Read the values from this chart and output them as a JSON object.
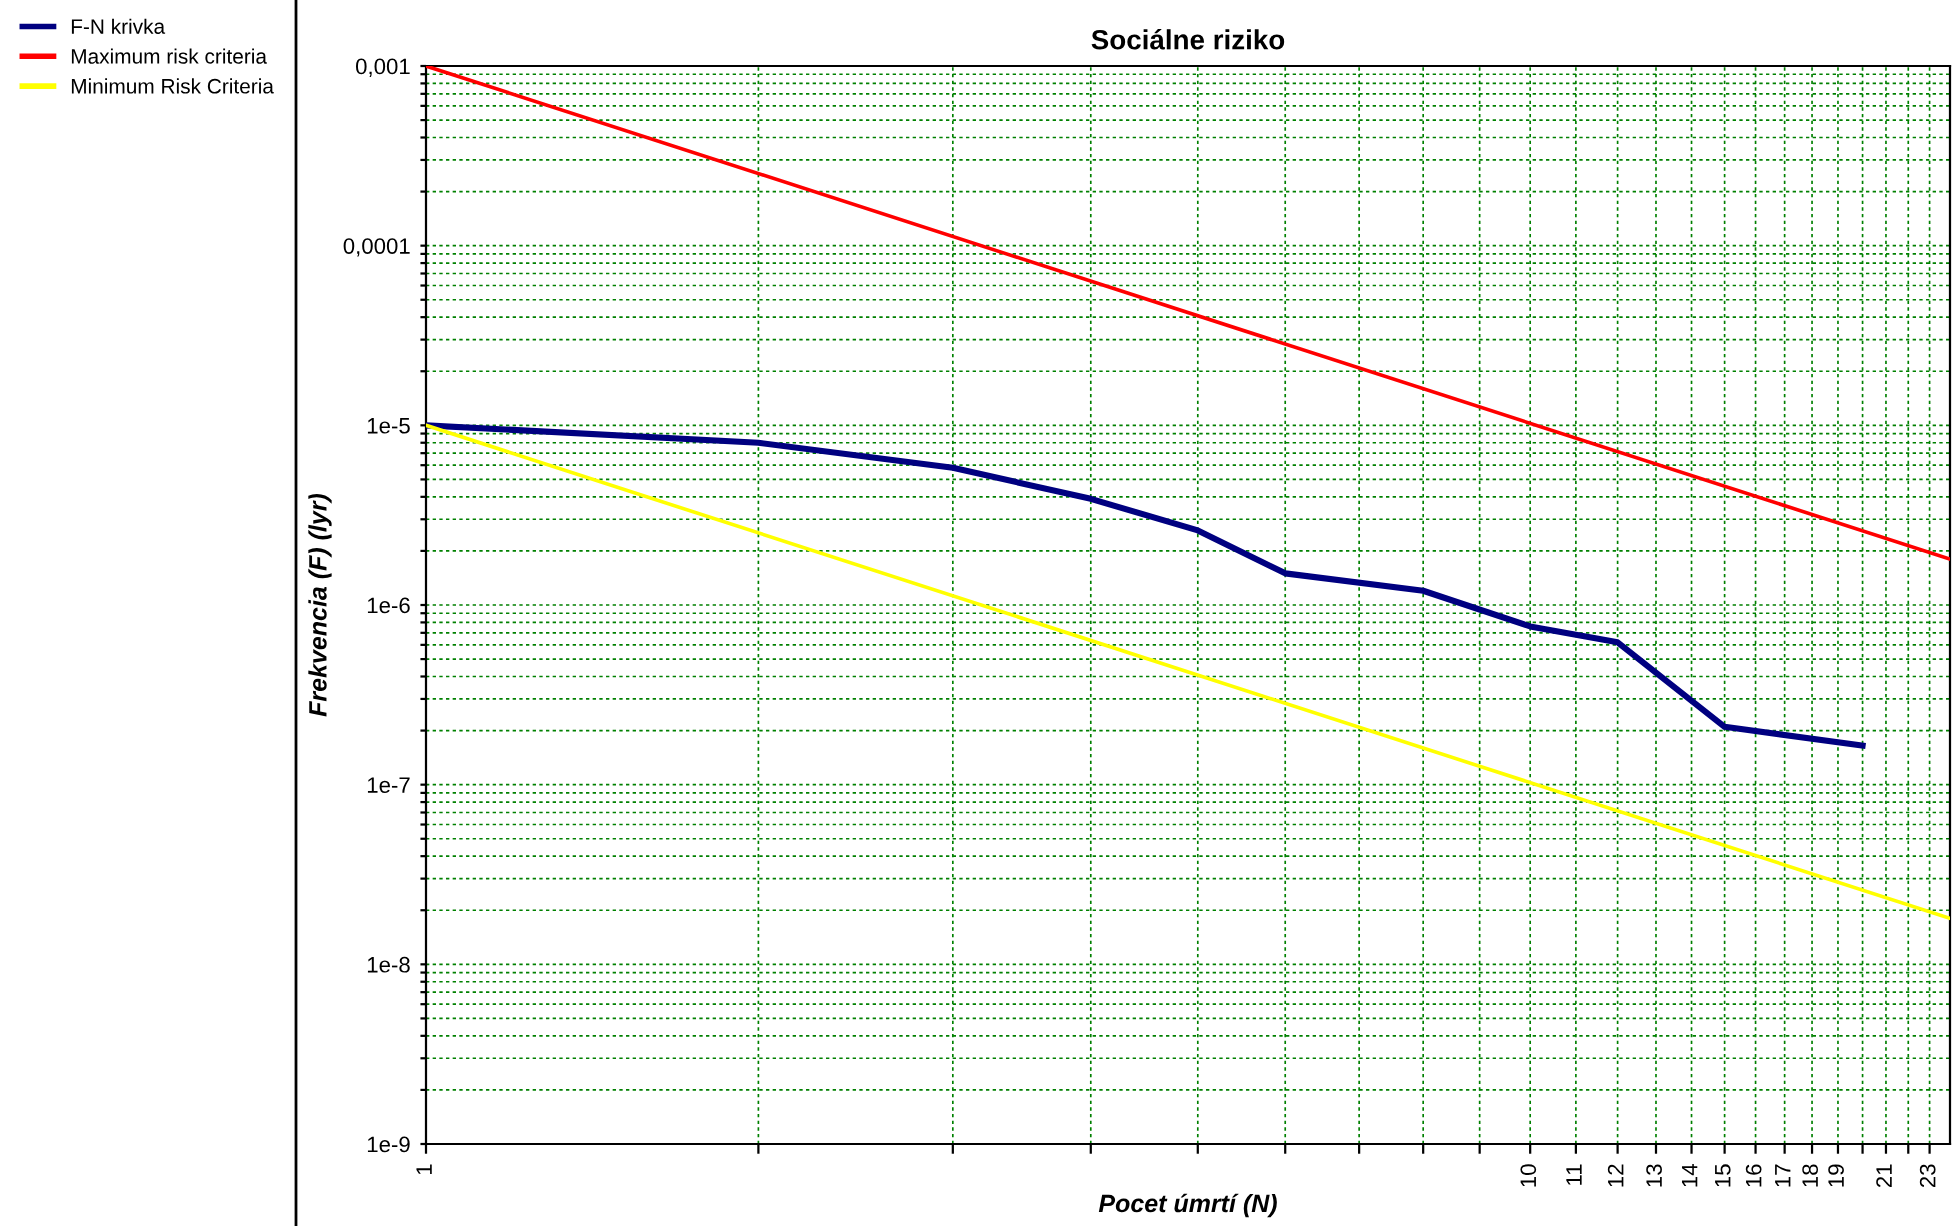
{
  "chart_data": {
    "type": "line",
    "title": "Sociálne riziko",
    "xlabel": "Pocet úmrtí (N)",
    "ylabel": "Frekvencia (F) (lyr)",
    "log": "xy",
    "grid": true,
    "legend": "top left",
    "line_style": "solid",
    "marker": "none",
    "xlim": [
      1,
      24
    ],
    "ylim": [
      1e-09,
      0.001
    ],
    "xticks": [
      1,
      {
        "value": 2,
        "label": null
      },
      {
        "value": 3,
        "label": null
      },
      {
        "value": 4,
        "label": null
      },
      {
        "value": 5,
        "label": null
      },
      {
        "value": 6,
        "label": null
      },
      {
        "value": 7,
        "label": null
      },
      {
        "value": 8,
        "label": null
      },
      {
        "value": 9,
        "label": null
      },
      10,
      11,
      12,
      13,
      14,
      15,
      16,
      17,
      18,
      19,
      {
        "value": 20,
        "label": null
      },
      21,
      {
        "value": 22,
        "label": null
      },
      23
    ],
    "yticks": [
      {
        "value": 1e-09,
        "label": "1e-9"
      },
      {
        "value": 2e-09,
        "label": null
      },
      {
        "value": 3e-09,
        "label": null
      },
      {
        "value": 4e-09,
        "label": null
      },
      {
        "value": 5e-09,
        "label": null
      },
      {
        "value": 6e-09,
        "label": null
      },
      {
        "value": 7e-09,
        "label": null
      },
      {
        "value": 8e-09,
        "label": null
      },
      {
        "value": 9e-09,
        "label": null
      },
      {
        "value": 1e-08,
        "label": "1e-8"
      },
      {
        "value": 2e-08,
        "label": null
      },
      {
        "value": 3e-08,
        "label": null
      },
      {
        "value": 4e-08,
        "label": null
      },
      {
        "value": 5e-08,
        "label": null
      },
      {
        "value": 6e-08,
        "label": null
      },
      {
        "value": 7e-08,
        "label": null
      },
      {
        "value": 8e-08,
        "label": null
      },
      {
        "value": 9e-08,
        "label": null
      },
      {
        "value": 1e-07,
        "label": "1e-7"
      },
      {
        "value": 2e-07,
        "label": null
      },
      {
        "value": 3e-07,
        "label": null
      },
      {
        "value": 4e-07,
        "label": null
      },
      {
        "value": 5e-07,
        "label": null
      },
      {
        "value": 6e-07,
        "label": null
      },
      {
        "value": 7e-07,
        "label": null
      },
      {
        "value": 8e-07,
        "label": null
      },
      {
        "value": 9e-07,
        "label": null
      },
      {
        "value": 1e-06,
        "label": "1e-6"
      },
      {
        "value": 2e-06,
        "label": null
      },
      {
        "value": 3e-06,
        "label": null
      },
      {
        "value": 4e-06,
        "label": null
      },
      {
        "value": 5e-06,
        "label": null
      },
      {
        "value": 6e-06,
        "label": null
      },
      {
        "value": 7e-06,
        "label": null
      },
      {
        "value": 8e-06,
        "label": null
      },
      {
        "value": 9e-06,
        "label": null
      },
      {
        "value": 1e-05,
        "label": "1e-5"
      },
      {
        "value": 2e-05,
        "label": null
      },
      {
        "value": 3e-05,
        "label": null
      },
      {
        "value": 4e-05,
        "label": null
      },
      {
        "value": 5e-05,
        "label": null
      },
      {
        "value": 6e-05,
        "label": null
      },
      {
        "value": 7e-05,
        "label": null
      },
      {
        "value": 8e-05,
        "label": null
      },
      {
        "value": 9e-05,
        "label": null
      },
      {
        "value": 0.0001,
        "label": "0,0001"
      },
      {
        "value": 0.0002,
        "label": null
      },
      {
        "value": 0.0003,
        "label": null
      },
      {
        "value": 0.0004,
        "label": null
      },
      {
        "value": 0.0005,
        "label": null
      },
      {
        "value": 0.0006,
        "label": null
      },
      {
        "value": 0.0007,
        "label": null
      },
      {
        "value": 0.0008,
        "label": null
      },
      {
        "value": 0.0009,
        "label": null
      },
      {
        "value": 0.001,
        "label": "0,001"
      }
    ],
    "series": [
      {
        "name": "F-N krivka",
        "color": "#000080",
        "x": [
          1,
          2,
          3,
          4,
          5,
          6,
          8,
          10,
          12,
          15,
          20
        ],
        "values": [
          1e-05,
          8e-06,
          5.8e-06,
          3.9e-06,
          2.6e-06,
          1.5e-06,
          1.2e-06,
          7.6e-07,
          6.2e-07,
          2.1e-07,
          1.65e-07
        ]
      },
      {
        "name": "Maximum risk criteria",
        "color": "#ff0000",
        "x": [
          1,
          24
        ],
        "values": [
          0.001,
          1.8e-06
        ]
      },
      {
        "name": "Minimum Risk Criteria",
        "color": "#ffff00",
        "x": [
          1,
          24
        ],
        "values": [
          1e-05,
          1.8e-08
        ]
      }
    ]
  }
}
